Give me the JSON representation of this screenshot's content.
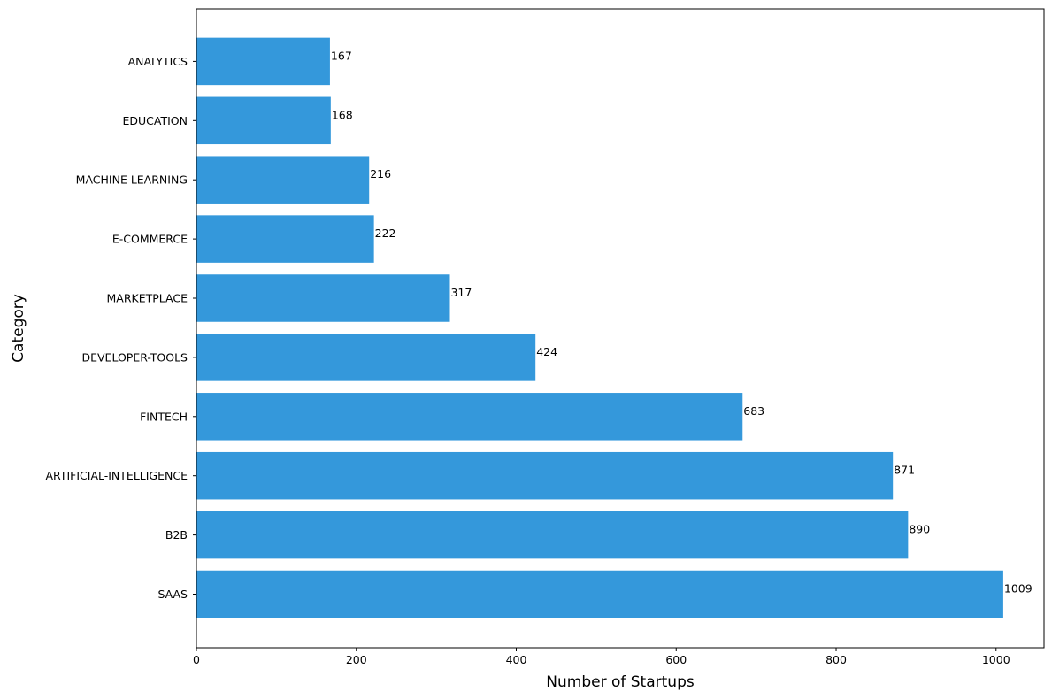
{
  "chart_data": {
    "type": "bar",
    "orientation": "horizontal",
    "title": "",
    "xlabel": "Number of Startups",
    "ylabel": "Category",
    "categories": [
      "SAAS",
      "B2B",
      "ARTIFICIAL-INTELLIGENCE",
      "FINTECH",
      "DEVELOPER-TOOLS",
      "MARKETPLACE",
      "E-COMMERCE",
      "MACHINE LEARNING",
      "EDUCATION",
      "ANALYTICS"
    ],
    "values": [
      1009,
      890,
      871,
      683,
      424,
      317,
      222,
      216,
      168,
      167
    ],
    "data_labels": [
      "1009",
      "890",
      "871",
      "683",
      "424",
      "317",
      "222",
      "216",
      "168",
      "167"
    ],
    "xlim": [
      0,
      1060
    ],
    "xticks": [
      0,
      200,
      400,
      600,
      800,
      1000
    ],
    "xtick_labels": [
      "0",
      "200",
      "400",
      "600",
      "800",
      "1000"
    ],
    "grid": false,
    "legend": "none",
    "bar_color": "#3498db"
  }
}
